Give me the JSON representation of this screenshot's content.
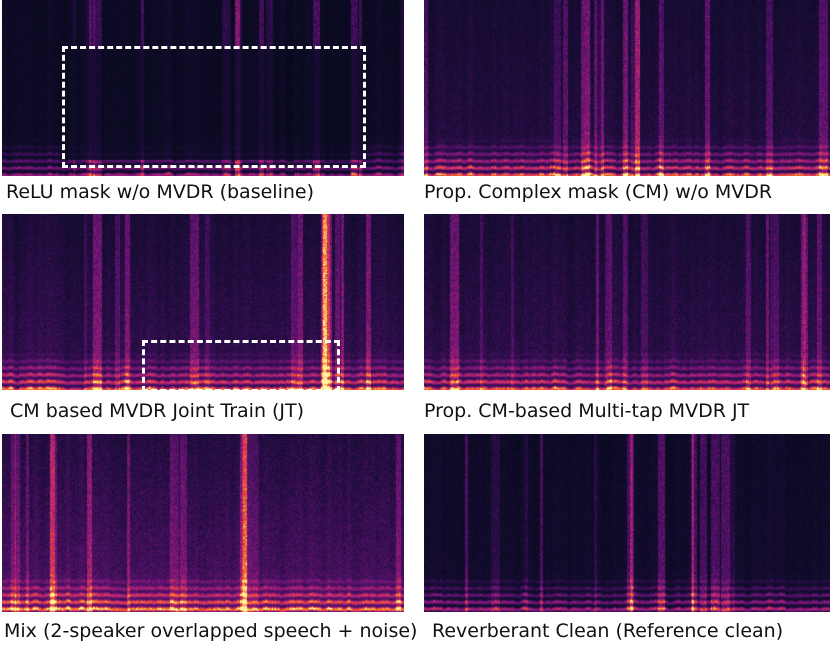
{
  "panels": [
    {
      "caption": "ReLU mask w/o MVDR (baseline)",
      "style": "relu"
    },
    {
      "caption": "Prop. Complex mask (CM) w/o MVDR",
      "style": "cm"
    },
    {
      "caption": "CM based MVDR Joint Train (JT)",
      "style": "jt"
    },
    {
      "caption": "Prop. CM-based Multi-tap MVDR JT",
      "style": "mt"
    },
    {
      "caption": "Mix (2-speaker overlapped speech + noise)",
      "style": "mix"
    },
    {
      "caption": "Reverberant Clean (Reference clean)",
      "style": "clean"
    }
  ],
  "colors": {
    "roi_border": "#ffffff",
    "colormap": "inferno",
    "background": "#ffffff"
  }
}
